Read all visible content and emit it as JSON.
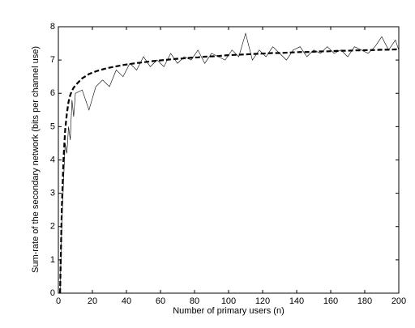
{
  "chart_data": {
    "type": "line",
    "x_label": "Number of primary users (n)",
    "y_label": "Sum-rate of the secondary network (bits per channel use)",
    "x": [
      1,
      2,
      3,
      4,
      5,
      6,
      7,
      8,
      9,
      10,
      14,
      18,
      22,
      26,
      30,
      34,
      38,
      42,
      46,
      50,
      54,
      58,
      62,
      66,
      70,
      74,
      78,
      82,
      86,
      90,
      94,
      98,
      102,
      106,
      110,
      114,
      118,
      122,
      126,
      130,
      134,
      138,
      142,
      146,
      150,
      154,
      158,
      162,
      166,
      170,
      174,
      178,
      182,
      186,
      190,
      194,
      198,
      200
    ],
    "series": [
      {
        "color": "#000000",
        "style": "solid",
        "width": 0.6,
        "values": [
          0,
          2.0,
          3.3,
          4.5,
          4.2,
          5.0,
          4.6,
          5.8,
          5.3,
          6.0,
          6.1,
          5.5,
          6.2,
          6.4,
          6.2,
          6.7,
          6.5,
          6.9,
          6.7,
          7.1,
          6.8,
          7.0,
          6.8,
          7.2,
          6.9,
          7.1,
          7.0,
          7.3,
          6.9,
          7.2,
          7.1,
          7.0,
          7.3,
          7.1,
          7.8,
          7.0,
          7.3,
          7.1,
          7.4,
          7.2,
          7.0,
          7.3,
          7.4,
          7.1,
          7.3,
          7.2,
          7.4,
          7.2,
          7.3,
          7.1,
          7.4,
          7.3,
          7.2,
          7.4,
          7.7,
          7.3,
          7.6,
          7.3
        ]
      },
      {
        "color": "#000000",
        "style": "dashed",
        "width": 2.2,
        "values": [
          0,
          2.5,
          4.0,
          4.9,
          5.4,
          5.75,
          5.95,
          6.08,
          6.17,
          6.24,
          6.45,
          6.58,
          6.66,
          6.72,
          6.77,
          6.81,
          6.85,
          6.88,
          6.91,
          6.93,
          6.96,
          6.98,
          7.0,
          7.02,
          7.04,
          7.05,
          7.07,
          7.08,
          7.1,
          7.11,
          7.12,
          7.14,
          7.15,
          7.16,
          7.17,
          7.18,
          7.19,
          7.2,
          7.21,
          7.21,
          7.22,
          7.23,
          7.24,
          7.24,
          7.25,
          7.26,
          7.26,
          7.27,
          7.28,
          7.28,
          7.29,
          7.29,
          7.3,
          7.3,
          7.31,
          7.31,
          7.32,
          7.32
        ]
      }
    ],
    "xlim": [
      0,
      200
    ],
    "xticks": [
      0,
      20,
      40,
      60,
      80,
      100,
      120,
      140,
      160,
      180,
      200
    ],
    "ylim": [
      0,
      8
    ],
    "yticks": [
      0,
      1,
      2,
      3,
      4,
      5,
      6,
      7,
      8
    ]
  }
}
